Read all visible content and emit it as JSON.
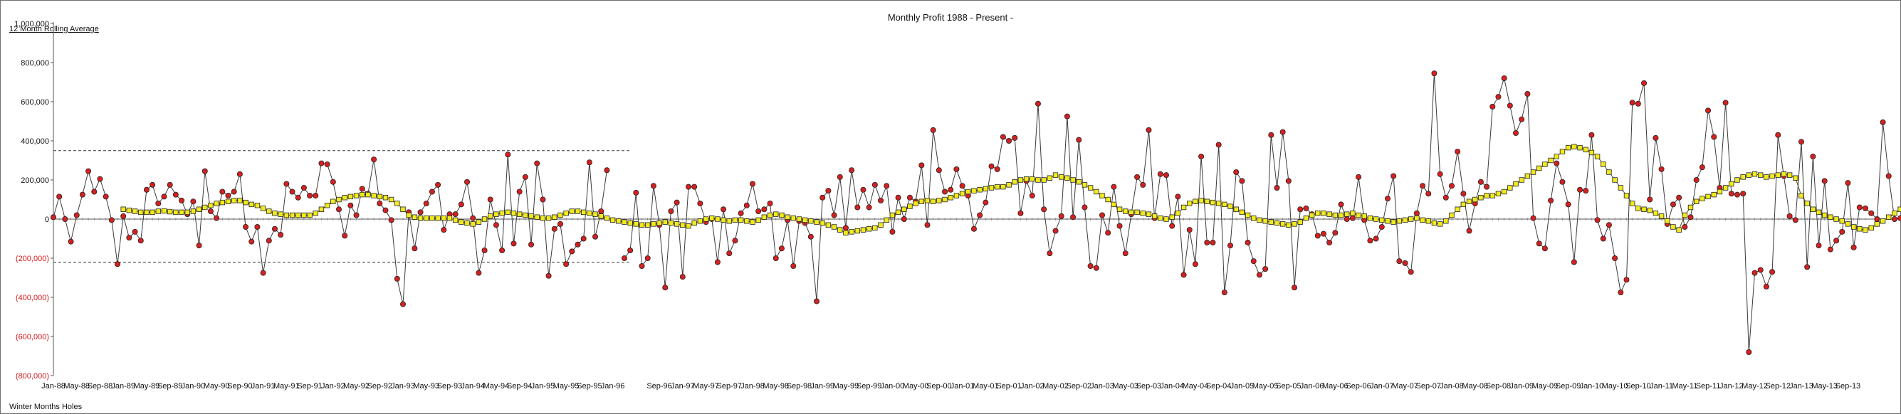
{
  "chart_data": {
    "type": "line",
    "title": "Monthly Profit 1988 - Present  -",
    "legend_note": "12 Month Rolling Average",
    "footer_note": "Winter Months Holes",
    "ylim": [
      -800000,
      1000000
    ],
    "y_ticks": [
      "1,000,000",
      "800,000",
      "600,000",
      "400,000",
      "200,000",
      "0",
      "(200,000)",
      "(400,000)",
      "(600,000)",
      "(800,000)"
    ],
    "y_tick_values": [
      1000000,
      800000,
      600000,
      400000,
      200000,
      0,
      -200000,
      -400000,
      -600000,
      -800000
    ],
    "x_tick_labels": [
      "Jan-88",
      "May-88",
      "Sep-88",
      "Jan-89",
      "May-89",
      "Sep-89",
      "Jan-90",
      "May-90",
      "Sep-90",
      "Jan-91",
      "May-91",
      "Sep-91",
      "Jan-92",
      "May-92",
      "Sep-92",
      "Jan-93",
      "May-93",
      "Sep-93",
      "Jan-94",
      "May-94",
      "Sep-94",
      "Jan-95",
      "May-95",
      "Sep-95",
      "Jan-96",
      "Sep-96",
      "Jan-97",
      "May-97",
      "Sep-97",
      "Jan-98",
      "May-98",
      "Sep-98",
      "Jan-99",
      "May-99",
      "Sep-99",
      "Jan-00",
      "May-00",
      "Sep-00",
      "Jan-01",
      "May-01",
      "Sep-01",
      "Jan-02",
      "May-02",
      "Sep-02",
      "Jan-03",
      "May-03",
      "Sep-03",
      "Jan-04",
      "May-04",
      "Sep-04",
      "Jan-05",
      "May-05",
      "Sep-05",
      "Jan-06",
      "May-06",
      "Sep-06",
      "Jan-07",
      "May-07",
      "Sep-07",
      "Jan-08",
      "May-08",
      "Sep-08",
      "Jan-09",
      "May-09",
      "Sep-09",
      "Jan-10",
      "May-10",
      "Sep-10",
      "Jan-11",
      "May-11",
      "Sep-11",
      "Jan-12",
      "May-12",
      "Sep-12",
      "Jan-13",
      "May-13",
      "Sep-13"
    ],
    "x_tick_month_index": [
      0,
      4,
      8,
      12,
      16,
      20,
      24,
      28,
      32,
      36,
      40,
      44,
      48,
      52,
      56,
      60,
      64,
      68,
      72,
      76,
      80,
      84,
      88,
      92,
      96,
      104,
      108,
      112,
      116,
      120,
      124,
      128,
      132,
      136,
      140,
      144,
      148,
      152,
      156,
      160,
      164,
      168,
      172,
      176,
      180,
      184,
      188,
      192,
      196,
      200,
      204,
      208,
      212,
      216,
      220,
      224,
      228,
      232,
      236,
      240,
      244,
      248,
      252,
      256,
      260,
      264,
      268,
      272,
      276,
      280,
      284,
      288,
      292,
      296,
      300,
      304,
      308
    ],
    "total_months": 312,
    "reference_lines": [
      {
        "value": 350000,
        "start_month": 0,
        "end_month": 99,
        "style": "dashed"
      },
      {
        "value": -220000,
        "start_month": 0,
        "end_month": 99,
        "style": "dashed"
      }
    ],
    "series": [
      {
        "name": "Monthly Profit",
        "marker": "circle",
        "color": "#d42020",
        "values": [
          10000,
          115000,
          0,
          -115000,
          20000,
          125000,
          245000,
          140000,
          205000,
          115000,
          -5000,
          -230000,
          15000,
          -95000,
          -65000,
          -110000,
          150000,
          175000,
          80000,
          115000,
          175000,
          125000,
          95000,
          25000,
          90000,
          -135000,
          245000,
          40000,
          5000,
          140000,
          120000,
          140000,
          230000,
          -40000,
          -115000,
          -40000,
          -275000,
          -110000,
          -50000,
          -80000,
          180000,
          140000,
          110000,
          160000,
          120000,
          120000,
          285000,
          280000,
          190000,
          50000,
          -85000,
          70000,
          20000,
          155000,
          130000,
          305000,
          80000,
          45000,
          -5000,
          -305000,
          -435000,
          35000,
          -150000,
          35000,
          80000,
          140000,
          175000,
          -55000,
          25000,
          25000,
          75000,
          190000,
          5000,
          -275000,
          -160000,
          100000,
          -30000,
          -160000,
          330000,
          -125000,
          140000,
          215000,
          -130000,
          285000,
          100000,
          -290000,
          -50000,
          -25000,
          -230000,
          -165000,
          -130000,
          -100000,
          290000,
          -90000,
          40000,
          250000,
          null,
          null,
          -200000,
          -160000,
          135000,
          -240000,
          -200000,
          170000,
          -30000,
          -350000,
          40000,
          85000,
          -295000,
          165000,
          165000,
          80000,
          -15000,
          0,
          -220000,
          50000,
          -175000,
          -110000,
          30000,
          70000,
          180000,
          40000,
          50000,
          80000,
          -200000,
          -150000,
          -5000,
          -240000,
          -10000,
          -20000,
          -90000,
          -420000,
          110000,
          145000,
          20000,
          215000,
          -45000,
          250000,
          60000,
          150000,
          60000,
          175000,
          95000,
          170000,
          -65000,
          110000,
          0,
          110000,
          90000,
          275000,
          -30000,
          455000,
          250000,
          140000,
          150000,
          255000,
          170000,
          120000,
          -50000,
          20000,
          85000,
          270000,
          255000,
          420000,
          400000,
          415000,
          30000,
          195000,
          120000,
          590000,
          50000,
          -175000,
          -60000,
          15000,
          525000,
          10000,
          405000,
          60000,
          -240000,
          -250000,
          20000,
          -70000,
          165000,
          -35000,
          -175000,
          25000,
          215000,
          175000,
          455000,
          5000,
          230000,
          225000,
          -35000,
          115000,
          -285000,
          -55000,
          -230000,
          320000,
          -120000,
          -120000,
          380000,
          -375000,
          -135000,
          240000,
          195000,
          -120000,
          -215000,
          -285000,
          -255000,
          430000,
          160000,
          445000,
          195000,
          -350000,
          50000,
          55000,
          25000,
          -85000,
          -75000,
          -120000,
          -70000,
          75000,
          0,
          5000,
          215000,
          -5000,
          -110000,
          -100000,
          -40000,
          105000,
          220000,
          -215000,
          -225000,
          -270000,
          30000,
          170000,
          130000,
          745000,
          230000,
          110000,
          170000,
          345000,
          130000,
          -60000,
          80000,
          190000,
          165000,
          575000,
          625000,
          720000,
          580000,
          440000,
          510000,
          640000,
          5000,
          -125000,
          -150000,
          95000,
          285000,
          190000,
          75000,
          -220000,
          150000,
          145000,
          430000,
          -5000,
          -100000,
          -30000,
          -200000,
          -375000,
          -310000,
          595000,
          590000,
          695000,
          100000,
          415000,
          255000,
          -25000,
          75000,
          110000,
          -40000,
          10000,
          200000,
          265000,
          555000,
          420000,
          160000,
          595000,
          130000,
          125000,
          130000,
          -680000,
          -275000,
          -260000,
          -345000,
          -270000,
          430000,
          220000,
          15000,
          -5000,
          395000,
          -245000,
          320000,
          -135000,
          195000,
          -155000,
          -110000,
          -65000,
          185000,
          -145000,
          60000,
          55000,
          30000,
          0,
          495000,
          220000,
          0,
          5000,
          null,
          null,
          null,
          null,
          60000
        ]
      },
      {
        "name": "12 Month Rolling Average",
        "marker": "square",
        "color": "#f2ea1c",
        "values": [
          null,
          null,
          null,
          null,
          null,
          null,
          null,
          null,
          null,
          null,
          null,
          null,
          50000,
          45000,
          40000,
          35000,
          35000,
          35000,
          40000,
          42000,
          38000,
          35000,
          35000,
          35000,
          40000,
          50000,
          60000,
          70000,
          80000,
          85000,
          90000,
          95000,
          95000,
          85000,
          75000,
          70000,
          55000,
          40000,
          30000,
          25000,
          20000,
          20000,
          20000,
          20000,
          20000,
          30000,
          50000,
          70000,
          90000,
          100000,
          110000,
          115000,
          120000,
          125000,
          125000,
          120000,
          115000,
          110000,
          100000,
          80000,
          50000,
          20000,
          10000,
          5000,
          5000,
          5000,
          5000,
          5000,
          5000,
          -5000,
          -15000,
          -20000,
          -25000,
          -15000,
          0,
          15000,
          25000,
          30000,
          35000,
          30000,
          25000,
          20000,
          15000,
          10000,
          5000,
          5000,
          10000,
          20000,
          30000,
          40000,
          40000,
          35000,
          30000,
          25000,
          15000,
          5000,
          -5000,
          -10000,
          -15000,
          -20000,
          -25000,
          -30000,
          -30000,
          -25000,
          -20000,
          -15000,
          -20000,
          -25000,
          -30000,
          -35000,
          -20000,
          -10000,
          0,
          5000,
          0,
          -5000,
          -10000,
          -5000,
          -5000,
          -10000,
          -15000,
          -5000,
          10000,
          20000,
          25000,
          20000,
          10000,
          5000,
          0,
          -5000,
          -10000,
          -15000,
          -20000,
          -30000,
          -40000,
          -55000,
          -70000,
          -65000,
          -60000,
          -55000,
          -50000,
          -45000,
          -30000,
          -5000,
          20000,
          35000,
          50000,
          65000,
          80000,
          90000,
          95000,
          90000,
          95000,
          100000,
          110000,
          120000,
          130000,
          140000,
          145000,
          150000,
          155000,
          160000,
          165000,
          165000,
          175000,
          190000,
          200000,
          205000,
          205000,
          200000,
          200000,
          210000,
          225000,
          215000,
          210000,
          200000,
          190000,
          175000,
          160000,
          140000,
          120000,
          100000,
          75000,
          50000,
          40000,
          35000,
          35000,
          30000,
          25000,
          15000,
          5000,
          0,
          10000,
          30000,
          60000,
          80000,
          90000,
          95000,
          90000,
          85000,
          80000,
          75000,
          65000,
          50000,
          35000,
          20000,
          5000,
          -5000,
          -10000,
          -15000,
          -20000,
          -25000,
          -30000,
          -25000,
          -15000,
          5000,
          20000,
          30000,
          30000,
          25000,
          20000,
          20000,
          25000,
          30000,
          20000,
          15000,
          5000,
          0,
          -5000,
          -10000,
          -15000,
          -10000,
          -5000,
          0,
          5000,
          -5000,
          -10000,
          -20000,
          -25000,
          -10000,
          20000,
          50000,
          75000,
          90000,
          100000,
          110000,
          120000,
          120000,
          130000,
          140000,
          160000,
          180000,
          200000,
          220000,
          240000,
          260000,
          280000,
          300000,
          320000,
          345000,
          365000,
          370000,
          365000,
          355000,
          340000,
          320000,
          280000,
          240000,
          200000,
          160000,
          120000,
          80000,
          55000,
          50000,
          45000,
          30000,
          15000,
          -10000,
          -40000,
          -55000,
          20000,
          60000,
          90000,
          105000,
          115000,
          125000,
          140000,
          160000,
          180000,
          200000,
          215000,
          225000,
          230000,
          225000,
          215000,
          220000,
          225000,
          230000,
          225000,
          210000,
          120000,
          80000,
          50000,
          35000,
          20000,
          10000,
          0,
          -10000,
          -25000,
          -40000,
          -50000,
          -55000,
          -45000,
          -25000,
          -10000,
          10000,
          30000,
          50000,
          70000,
          90000,
          80000,
          60000,
          50000,
          45000,
          40000,
          30000,
          20000,
          10000,
          0,
          55000,
          60000,
          55000,
          50000
        ]
      }
    ]
  }
}
